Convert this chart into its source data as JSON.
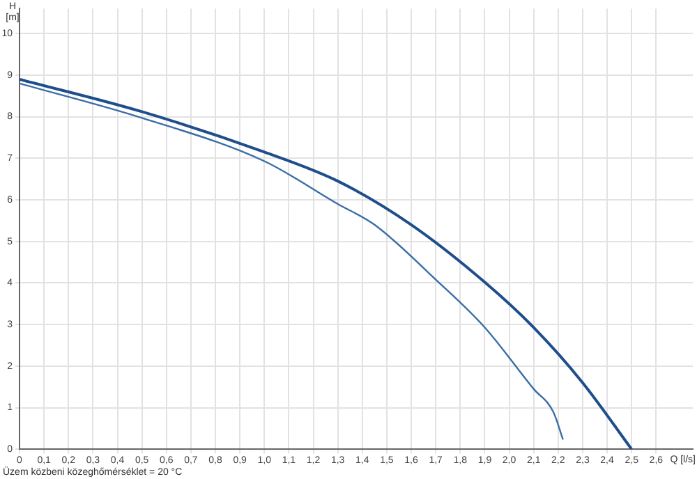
{
  "chart_data": {
    "type": "line",
    "xlabel": "Q [l/s]",
    "ylabel": "H [m]",
    "xlim": [
      0,
      2.75
    ],
    "xticks": [
      0,
      {
        "value": 0.1,
        "label": "0,1"
      },
      {
        "value": 0.2,
        "label": "0,2"
      },
      {
        "value": 0.3,
        "label": "0,3"
      },
      {
        "value": 0.4,
        "label": "0,4"
      },
      {
        "value": 0.5,
        "label": "0,5"
      },
      {
        "value": 0.6,
        "label": "0,6"
      },
      {
        "value": 0.7,
        "label": "0,7"
      },
      {
        "value": 0.8,
        "label": "0,8"
      },
      {
        "value": 0.9,
        "label": "0,9"
      },
      {
        "value": 1,
        "label": "1,0"
      },
      {
        "value": 1.1,
        "label": "1,1"
      },
      {
        "value": 1.2,
        "label": "1,2"
      },
      {
        "value": 1.3,
        "label": "1,3"
      },
      {
        "value": 1.4,
        "label": "1,4"
      },
      {
        "value": 1.5,
        "label": "1,5"
      },
      {
        "value": 1.6,
        "label": "1,6"
      },
      {
        "value": 1.7,
        "label": "1,7"
      },
      {
        "value": 1.8,
        "label": "1,8"
      },
      {
        "value": 1.9,
        "label": "1,9"
      },
      {
        "value": 2,
        "label": "2,0"
      },
      {
        "value": 2.1,
        "label": "2,1"
      },
      {
        "value": 2.2,
        "label": "2,2"
      },
      {
        "value": 2.3,
        "label": "2,3"
      },
      {
        "value": 2.4,
        "label": "2,4"
      },
      {
        "value": 2.5,
        "label": "2,5"
      },
      {
        "value": 2.6,
        "label": "2,6"
      }
    ],
    "ylim": [
      0,
      10.6
    ],
    "yticks": [
      0,
      1,
      2,
      3,
      4,
      5,
      6,
      7,
      8,
      9,
      10
    ],
    "series": [
      {
        "color": "#1f4e8c",
        "x": [
          0,
          0.5,
          1.0,
          1.3,
          1.6,
          1.9,
          2.1,
          2.3,
          2.5
        ],
        "values": [
          8.9,
          8.12,
          7.15,
          6.45,
          5.4,
          4.02,
          2.93,
          1.6,
          0
        ]
      },
      {
        "color": "#3a6ea5",
        "x": [
          0,
          0.5,
          1.0,
          1.3,
          1.45,
          1.7,
          1.9,
          2.1,
          2.18,
          2.22
        ],
        "values": [
          8.8,
          7.97,
          6.93,
          5.9,
          5.4,
          4.08,
          2.93,
          1.45,
          0.9,
          0.23
        ]
      }
    ],
    "grid": true,
    "marker": "none",
    "line_style": "solid",
    "annotations": [
      "Üzem közbeni közeghőmérséklet = 20 °C"
    ]
  }
}
